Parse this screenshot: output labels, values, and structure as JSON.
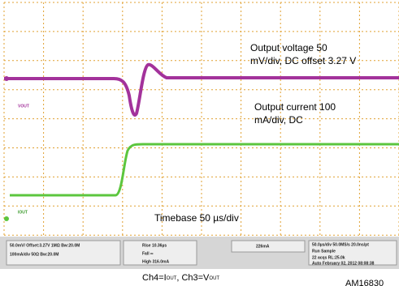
{
  "annotations": {
    "voltage": [
      "Output voltage 50",
      "mV/div, DC offset 3.27 V"
    ],
    "current": [
      "Output current 100",
      "mA/div, DC"
    ],
    "timebase": "Timebase 50 µs/div"
  },
  "screen": {
    "ch3_label": "VOUT",
    "ch4_label": "IOUT"
  },
  "status": {
    "ch3": "50.0mV/ Offset:3.27V  1MΩ  Bw:20.0M",
    "ch4": "100mA/div  50Ω  Bw:20.0M",
    "rise": "Rise  10.36µs",
    "fall": "Fall  ∞",
    "high": "High  316.0mA",
    "trigger": "226mA",
    "timebase": "50.0µs/div 50.0MS/s  20.0ns/pt",
    "run": "Run   Sample",
    "acqs": "22 acqs   RL:25.0k",
    "date": "Auto  February 02, 2012 08:08:38"
  },
  "caption": {
    "ch4": "Ch4=I",
    "ch4_sub": "OUT",
    "ch3": ", Ch3=V",
    "ch3_sub": "OUT"
  },
  "figure_id": "AM16830"
}
